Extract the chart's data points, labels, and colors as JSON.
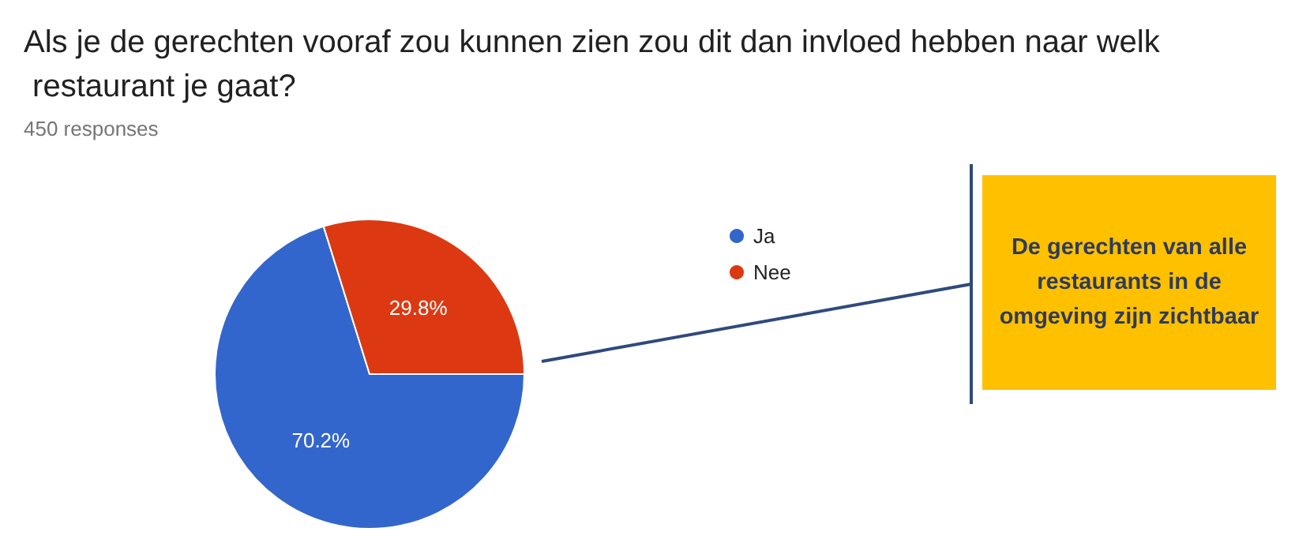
{
  "chart_data": {
    "type": "pie",
    "title": "Als je de gerechten vooraf zou kunnen zien zou dit dan invloed hebben naar welk restaurant je gaat?",
    "subtitle": "450 responses",
    "categories": [
      "Ja",
      "Nee"
    ],
    "values": [
      70.2,
      29.8
    ],
    "colors": [
      "#3366cc",
      "#dc3912"
    ],
    "value_labels": [
      "70.2%",
      "29.8%"
    ],
    "legend": "right",
    "annotations": [
      "De gerechten van alle restaurants in de omgeving zijn zichtbaar"
    ]
  }
}
